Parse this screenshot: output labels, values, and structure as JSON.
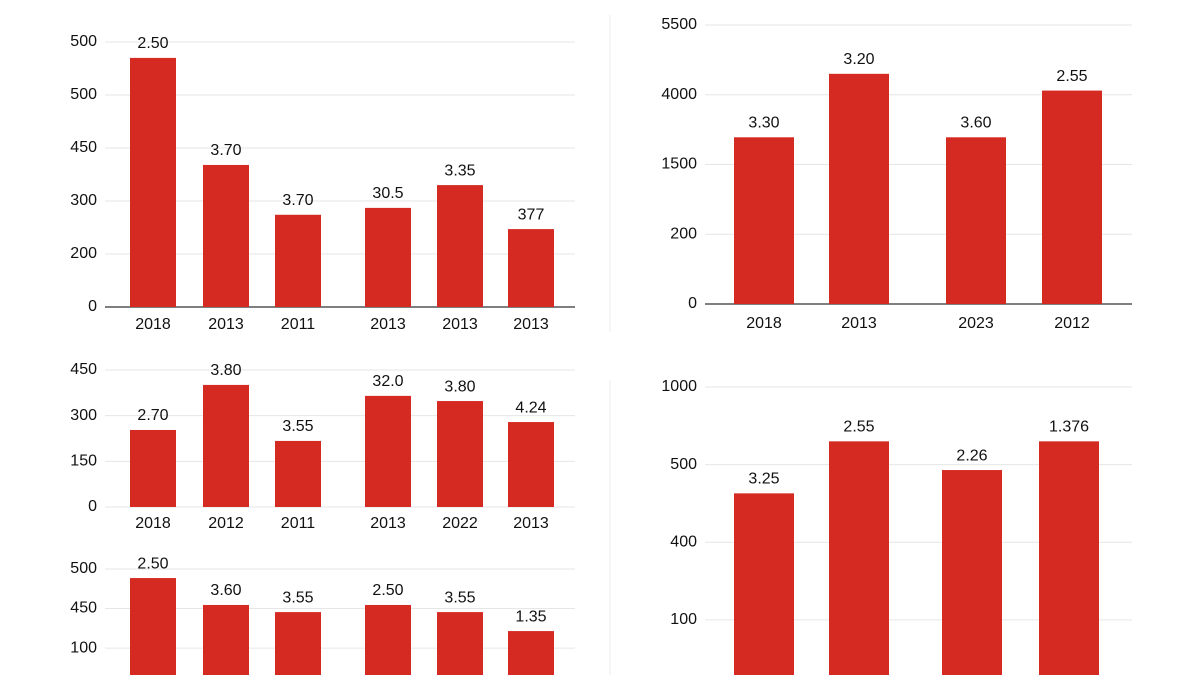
{
  "chart_data": [
    {
      "type": "bar",
      "color": "#d42a22",
      "grid": true,
      "categories": [
        "2018",
        "2013",
        "2011",
        "2013",
        "2013",
        "2013"
      ],
      "values": [
        4.7,
        2.68,
        1.74,
        1.87,
        2.3,
        1.47
      ],
      "bar_labels": [
        "2.50",
        "3.70",
        "3.70",
        "30.5",
        "3.35",
        "377"
      ],
      "ylim": [
        0,
        5
      ],
      "yticks": [
        {
          "value": 0,
          "label": "0"
        },
        {
          "value": 1,
          "label": "200"
        },
        {
          "value": 2,
          "label": "300"
        },
        {
          "value": 3,
          "label": "450"
        },
        {
          "value": 4,
          "label": "500"
        },
        {
          "value": 5,
          "label": "500"
        }
      ]
    },
    {
      "type": "bar",
      "color": "#d42a22",
      "grid": true,
      "categories": [
        "2018",
        "2013",
        "2023",
        "2012"
      ],
      "values": [
        2.39,
        3.3,
        2.39,
        3.06
      ],
      "bar_labels": [
        "3.30",
        "3.20",
        "3.60",
        "2.55"
      ],
      "ylim": [
        0,
        4
      ],
      "yticks": [
        {
          "value": 0,
          "label": "0"
        },
        {
          "value": 1,
          "label": "200"
        },
        {
          "value": 2,
          "label": "1500"
        },
        {
          "value": 3,
          "label": "4000"
        },
        {
          "value": 4,
          "label": "5500"
        }
      ]
    },
    {
      "type": "bar",
      "color": "#d42a22",
      "grid": true,
      "categories": [
        "2018",
        "2012",
        "2011",
        "2013",
        "2022",
        "2013"
      ],
      "values": [
        253,
        401,
        217,
        365,
        348,
        279
      ],
      "bar_labels": [
        "2.70",
        "3.80",
        "3.55",
        "32.0",
        "3.80",
        "4.24"
      ],
      "ylim": [
        0,
        450
      ],
      "yticks": [
        0,
        150,
        300,
        450
      ]
    },
    {
      "type": "bar",
      "color": "#d42a22",
      "grid": true,
      "values": [
        1.77,
        1.09,
        0.91,
        1.09,
        0.91,
        0.43
      ],
      "bar_labels": [
        "2.50",
        "3.60",
        "3.55",
        "2.50",
        "3.55",
        "1.35"
      ],
      "ylim": [
        -0.68,
        2.1
      ],
      "yticks": [
        {
          "value": 0,
          "label": "100"
        },
        {
          "value": 1,
          "label": "450"
        },
        {
          "value": 2,
          "label": "500"
        }
      ]
    },
    {
      "type": "bar",
      "color": "#d42a22",
      "grid": true,
      "values": [
        1.63,
        2.3,
        1.93,
        2.3
      ],
      "bar_labels": [
        "3.25",
        "2.55",
        "2.26",
        "1.376"
      ],
      "ylim": [
        -0.71,
        3
      ],
      "yticks": [
        {
          "value": 0,
          "label": "100"
        },
        {
          "value": 1,
          "label": "400"
        },
        {
          "value": 2,
          "label": "500"
        },
        {
          "value": 3,
          "label": "1000"
        }
      ]
    }
  ]
}
